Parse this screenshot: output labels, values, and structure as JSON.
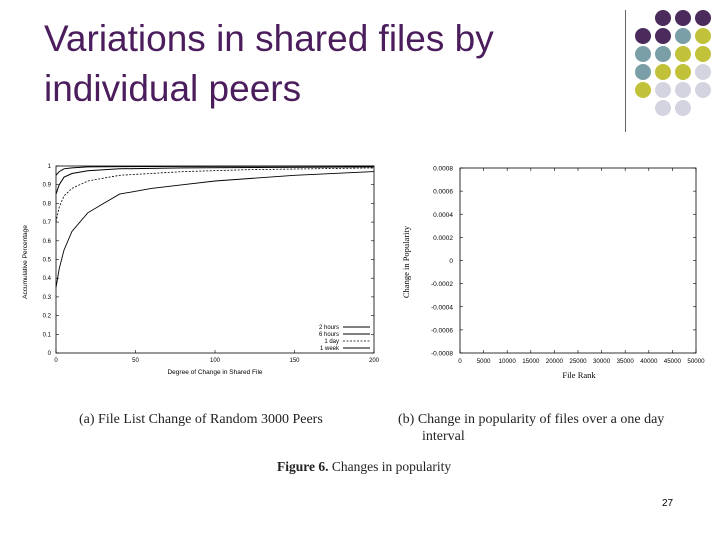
{
  "slide": {
    "title_line1": "Variations in shared files by",
    "title_line2": "individual peers",
    "page_number": "27",
    "dot_colors": [
      "#4b2a5c",
      "#7a9fa6",
      "#c2c23a",
      "#d4d4e0"
    ]
  },
  "figure": {
    "caption_a": "(a) File List Change of Random 3000 Peers",
    "caption_b_line1": "(b)  Change in popularity of files over a one day",
    "caption_b_line2": "interval",
    "figure_label": "Figure 6.",
    "figure_text": "Changes in popularity"
  },
  "chart_data": [
    {
      "type": "line",
      "xlabel": "Degree of Change in Shared File",
      "ylabel": "Accumulative Percentage",
      "xlim": [
        0,
        200
      ],
      "ylim": [
        0,
        1
      ],
      "x_ticks": [
        "0",
        "50",
        "100",
        "150",
        "200"
      ],
      "y_ticks": [
        "0",
        "0.1",
        "0.2",
        "0.3",
        "0.4",
        "0.5",
        "0.6",
        "0.7",
        "0.8",
        "0.9",
        "1"
      ],
      "legend_position": "bottom-right",
      "series": [
        {
          "name": "2 hours",
          "x": [
            0,
            2,
            5,
            10,
            20,
            40,
            80,
            200
          ],
          "y": [
            0.95,
            0.97,
            0.985,
            0.99,
            0.995,
            0.997,
            0.998,
            1.0
          ]
        },
        {
          "name": "6 hours",
          "x": [
            0,
            2,
            5,
            10,
            20,
            40,
            80,
            200
          ],
          "y": [
            0.85,
            0.9,
            0.94,
            0.96,
            0.975,
            0.985,
            0.99,
            0.995
          ]
        },
        {
          "name": "1 day",
          "x": [
            0,
            2,
            5,
            10,
            20,
            40,
            80,
            120,
            200
          ],
          "y": [
            0.7,
            0.78,
            0.84,
            0.88,
            0.92,
            0.95,
            0.97,
            0.98,
            0.99
          ]
        },
        {
          "name": "1 week",
          "x": [
            0,
            2,
            5,
            10,
            20,
            30,
            40,
            60,
            80,
            100,
            150,
            200
          ],
          "y": [
            0.35,
            0.45,
            0.55,
            0.65,
            0.75,
            0.8,
            0.85,
            0.88,
            0.9,
            0.92,
            0.95,
            0.97
          ]
        }
      ]
    },
    {
      "type": "scatter",
      "xlabel": "File Rank",
      "ylabel": "Change in Popularity",
      "xlim": [
        0,
        50000
      ],
      "ylim": [
        -0.0008,
        0.0008
      ],
      "x_ticks": [
        "0",
        "5000",
        "10000",
        "15000",
        "20000",
        "25000",
        "30000",
        "35000",
        "40000",
        "45000",
        "50000"
      ],
      "y_ticks": [
        "0.0008",
        "0.0006",
        "0.0004",
        "0.0002",
        "0",
        "-0.0002",
        "-0.0004",
        "-0.0006",
        "-0.0008"
      ],
      "series": []
    }
  ]
}
